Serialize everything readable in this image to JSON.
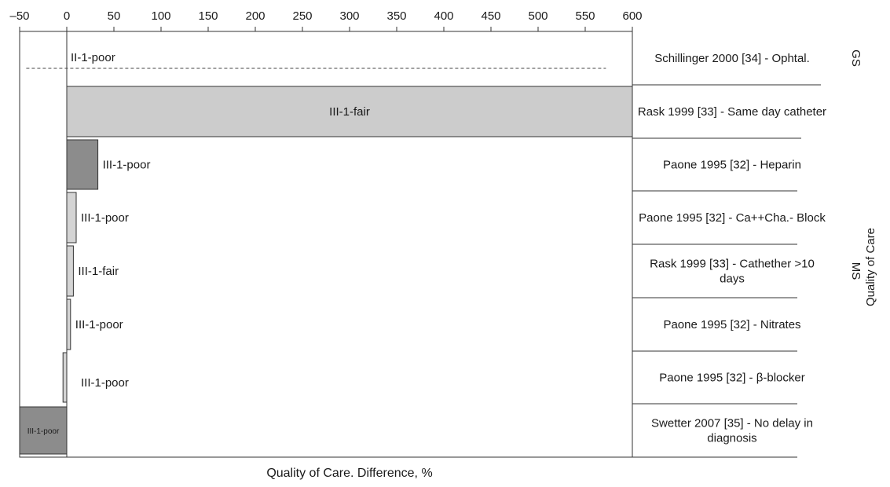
{
  "chart_data": {
    "type": "bar",
    "orientation": "horizontal",
    "xlabel": "Quality of Care. Difference, %",
    "ylabel": "Quality of Care",
    "xlim": [
      -50,
      600
    ],
    "xticks": [
      "–50",
      "0",
      "50",
      "100",
      "150",
      "200",
      "250",
      "300",
      "350",
      "400",
      "450",
      "500",
      "550",
      "600"
    ],
    "rows": [
      {
        "label": "Schillinger 2000 [34] - Ophtal.",
        "bar_label": "II-1-poor",
        "value": null,
        "ci": [
          -43,
          572
        ],
        "fill": "#ffffff"
      },
      {
        "label": "Rask 1999 [33] - Same day catheter",
        "bar_label": "III-1-fair",
        "value": 600,
        "fill": "#cccccc"
      },
      {
        "label": "Paone 1995 [32] - Heparin",
        "bar_label": "III-1-poor",
        "value": 33,
        "fill": "#8c8c8c"
      },
      {
        "label": "Paone 1995 [32] - Ca++Cha.- Block",
        "bar_label": "III-1-poor",
        "value": 10,
        "fill": "#d4d4d4"
      },
      {
        "label": "Rask 1999 [33] - Cathether >10 days",
        "bar_label": "III-1-fair",
        "value": 7,
        "fill": "#d4d4d4"
      },
      {
        "label": "Paone 1995 [32] - Nitrates",
        "bar_label": "III-1-poor",
        "value": 4,
        "fill": "#d4d4d4"
      },
      {
        "label": "Paone 1995 [32] - β-blocker",
        "bar_label": "III-1-poor",
        "value": -4,
        "fill": "#d4d4d4"
      },
      {
        "label": "Swetter 2007 [35] - No delay in diagnosis",
        "bar_label": "III-1-poor",
        "value": -50,
        "fill": "#8c8c8c"
      }
    ],
    "groups": [
      {
        "name": "GS",
        "rows": [
          0
        ]
      },
      {
        "name": "MS",
        "rows": [
          1,
          2,
          3,
          4,
          5,
          6,
          7
        ]
      }
    ]
  }
}
